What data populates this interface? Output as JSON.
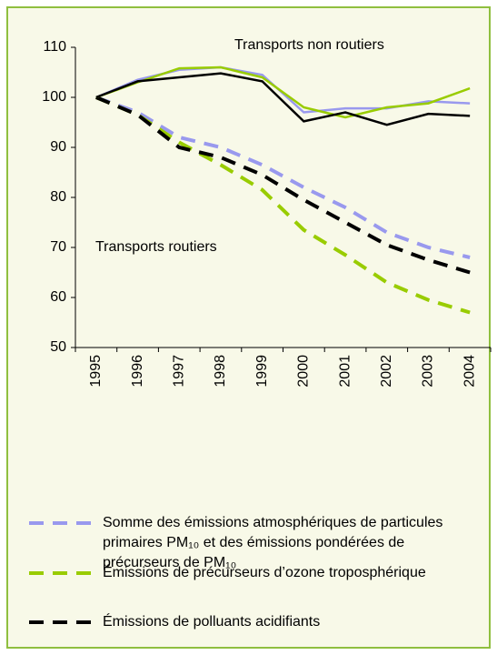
{
  "chart_data": {
    "type": "line",
    "annotations": [
      "Transports non routiers",
      "Transports routiers"
    ],
    "categories": [
      "1995",
      "1996",
      "1997",
      "1998",
      "1999",
      "2000",
      "2001",
      "2002",
      "2003",
      "2004"
    ],
    "ylim": [
      50,
      110
    ],
    "yticks": [
      50,
      60,
      70,
      80,
      90,
      100,
      110
    ],
    "series": [
      {
        "name": "Somme des émissions atmosphériques de particules primaires PM₁₀ et des émissions pondérées de précurseurs de PM₁₀",
        "color": "#9999ee",
        "dashed": true,
        "values": [
          100,
          97,
          92,
          90,
          86.5,
          82,
          78,
          73,
          70,
          68
        ]
      },
      {
        "name": "Émissions de précurseurs d’ozone troposphérique",
        "color": "#99cc00",
        "dashed": true,
        "values": [
          100,
          96.5,
          91,
          86.5,
          81.5,
          73.5,
          68.5,
          63,
          59.5,
          57
        ]
      },
      {
        "name": "Émissions de polluants acidifiants",
        "color": "#000000",
        "dashed": true,
        "values": [
          100,
          96.5,
          90,
          88,
          84.5,
          79.5,
          75,
          70.5,
          67.5,
          65
        ]
      },
      {
        "color": "#9999ee",
        "dashed": false,
        "values": [
          100,
          103.5,
          105.5,
          106,
          104.5,
          97,
          97.8,
          97.8,
          99.2,
          98.8
        ]
      },
      {
        "color": "#99cc00",
        "dashed": false,
        "values": [
          100,
          103,
          105.8,
          106,
          104,
          98,
          96,
          98,
          98.8,
          101.8
        ]
      },
      {
        "color": "#000000",
        "dashed": false,
        "values": [
          100,
          103.2,
          104,
          104.8,
          103.2,
          95.2,
          97,
          94.5,
          96.7,
          96.3
        ]
      }
    ]
  }
}
